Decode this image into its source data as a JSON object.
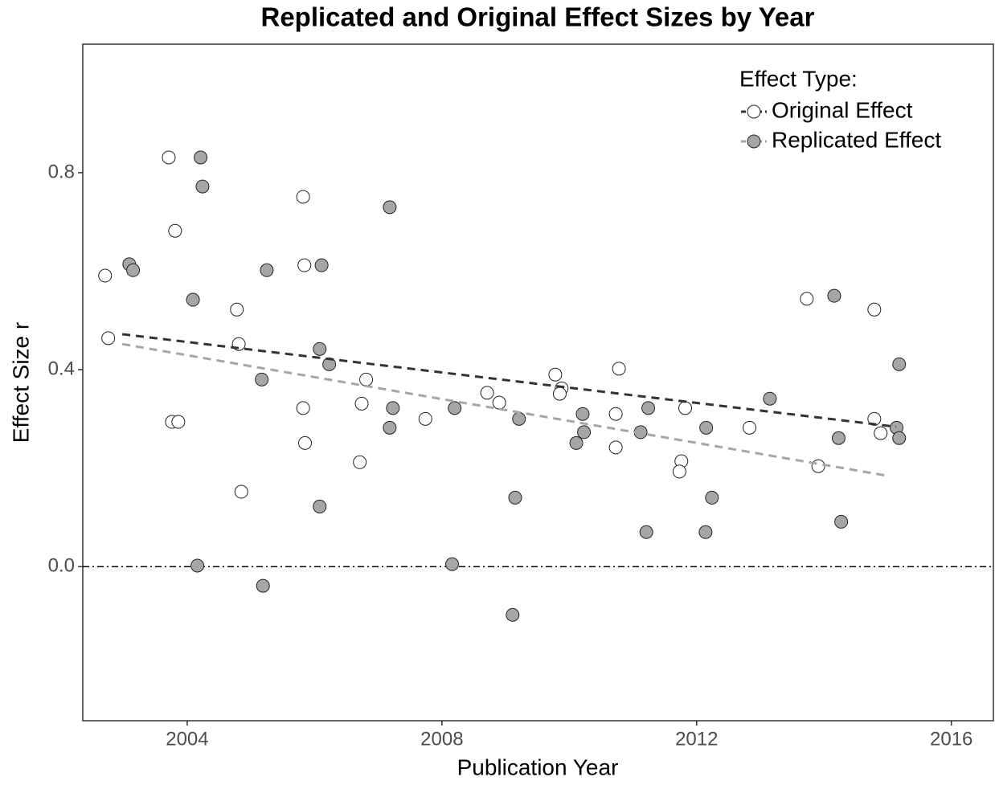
{
  "chart_data": {
    "type": "scatter",
    "title": "Replicated and Original Effect Sizes by Year",
    "x_label": "Publication Year",
    "y_label": "Effect Size r",
    "legend_title": "Effect Type:",
    "legend_position": "top-right",
    "xlim": [
      2002.36,
      2016.66
    ],
    "ylim": [
      -0.313,
      1.061
    ],
    "xticks": [
      2004,
      2008,
      2012,
      2016
    ],
    "yticks": [
      {
        "value": 0,
        "label": "0.0"
      },
      {
        "value": 0.4,
        "label": "0.4"
      },
      {
        "value": 0.8,
        "label": "0.8"
      }
    ],
    "hline": 0,
    "series": [
      {
        "name": "Original Effect",
        "color": "#ffffff",
        "line_color": "#333333",
        "x": [
          2002.71,
          2002.76,
          2003.71,
          2003.81,
          2003.76,
          2003.86,
          2004.78,
          2004.81,
          2004.85,
          2005.82,
          2005.84,
          2005.82,
          2005.85,
          2006.81,
          2006.74,
          2006.71,
          2007.74,
          2008.71,
          2008.9,
          2009.78,
          2009.88,
          2009.85,
          2010.78,
          2010.73,
          2010.73,
          2011.76,
          2011.73,
          2011.82,
          2012.83,
          2013.73,
          2013.91,
          2014.79,
          2014.79,
          2014.89
        ],
        "values": [
          0.591,
          0.464,
          0.831,
          0.682,
          0.294,
          0.294,
          0.522,
          0.452,
          0.152,
          0.751,
          0.612,
          0.322,
          0.251,
          0.38,
          0.331,
          0.212,
          0.3,
          0.353,
          0.333,
          0.39,
          0.362,
          0.351,
          0.402,
          0.31,
          0.242,
          0.214,
          0.193,
          0.322,
          0.282,
          0.544,
          0.204,
          0.522,
          0.3,
          0.271
        ],
        "trend_x": [
          2002.98,
          2015.13
        ],
        "trend_y": [
          0.472,
          0.284
        ]
      },
      {
        "name": "Replicated Effect",
        "color": "#a6a6a6",
        "line_color": "#a6a6a6",
        "x": [
          2003.09,
          2003.15,
          2004.21,
          2004.24,
          2004.09,
          2004.16,
          2005.17,
          2005.25,
          2005.19,
          2006.11,
          2006.08,
          2006.23,
          2006.08,
          2007.18,
          2007.23,
          2007.18,
          2008.2,
          2008.16,
          2009.21,
          2009.15,
          2009.11,
          2010.21,
          2010.23,
          2010.11,
          2011.12,
          2011.24,
          2011.21,
          2012.15,
          2012.24,
          2012.14,
          2013.15,
          2014.16,
          2014.23,
          2014.27,
          2015.18,
          2015.14,
          2015.18
        ],
        "values": [
          0.614,
          0.602,
          0.831,
          0.772,
          0.542,
          0.002,
          0.38,
          0.602,
          -0.039,
          0.612,
          0.442,
          0.411,
          0.122,
          0.73,
          0.322,
          0.282,
          0.322,
          0.005,
          0.3,
          0.14,
          -0.098,
          0.31,
          0.273,
          0.251,
          0.273,
          0.322,
          0.07,
          0.282,
          0.14,
          0.07,
          0.341,
          0.55,
          0.261,
          0.091,
          0.411,
          0.282,
          0.261
        ],
        "trend_x": [
          2002.98,
          2015.02
        ],
        "trend_y": [
          0.452,
          0.184
        ]
      }
    ]
  }
}
